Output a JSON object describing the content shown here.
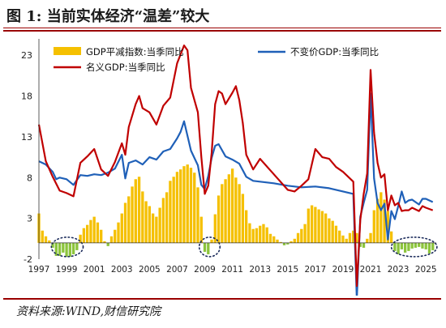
{
  "title": "图 1:  当前实体经济“温差”较大",
  "source": "资料来源:WIND,财信研究院",
  "colors": {
    "rule": "#9a0000",
    "bar_positive": "#f5c000",
    "bar_negative": "#8cc43c",
    "line_real": "#1f60b8",
    "line_nominal": "#c00000"
  },
  "chart_data": {
    "type": "bar+line",
    "ylim": [
      -2,
      25
    ],
    "yticks": [
      -2,
      3,
      8,
      13,
      18,
      23
    ],
    "xlim": [
      1997,
      2025.75
    ],
    "xticks": [
      "1997",
      "1999",
      "2001",
      "2003",
      "2005",
      "2007",
      "2009",
      "2011",
      "2013",
      "2015",
      "2017",
      "2019",
      "2021",
      "2023",
      "2025"
    ],
    "legend": [
      {
        "name": "GDP平减指数:当季同比",
        "kind": "bar",
        "color": "#f5c000"
      },
      {
        "name": "不变价GDP:当季同比",
        "kind": "line",
        "color": "#1f60b8"
      },
      {
        "name": "名义GDP:当季同比",
        "kind": "line",
        "color": "#c00000"
      }
    ],
    "series": [
      {
        "name": "GDP平减指数:当季同比",
        "type": "bar",
        "x": [
          1997.0,
          1997.25,
          1997.5,
          1997.75,
          1998.0,
          1998.25,
          1998.5,
          1998.75,
          1999.0,
          1999.25,
          1999.5,
          1999.75,
          2000.0,
          2000.25,
          2000.5,
          2000.75,
          2001.0,
          2001.25,
          2001.5,
          2001.75,
          2002.0,
          2002.25,
          2002.5,
          2002.75,
          2003.0,
          2003.25,
          2003.5,
          2003.75,
          2004.0,
          2004.25,
          2004.5,
          2004.75,
          2005.0,
          2005.25,
          2005.5,
          2005.75,
          2006.0,
          2006.25,
          2006.5,
          2006.75,
          2007.0,
          2007.25,
          2007.5,
          2007.75,
          2008.0,
          2008.25,
          2008.5,
          2008.75,
          2009.0,
          2009.25,
          2009.5,
          2009.75,
          2010.0,
          2010.25,
          2010.5,
          2010.75,
          2011.0,
          2011.25,
          2011.5,
          2011.75,
          2012.0,
          2012.25,
          2012.5,
          2012.75,
          2013.0,
          2013.25,
          2013.5,
          2013.75,
          2014.0,
          2014.25,
          2014.5,
          2014.75,
          2015.0,
          2015.25,
          2015.5,
          2015.75,
          2016.0,
          2016.25,
          2016.5,
          2016.75,
          2017.0,
          2017.25,
          2017.5,
          2017.75,
          2018.0,
          2018.25,
          2018.5,
          2018.75,
          2019.0,
          2019.25,
          2019.5,
          2019.75,
          2020.0,
          2020.25,
          2020.5,
          2020.75,
          2021.0,
          2021.25,
          2021.5,
          2021.75,
          2022.0,
          2022.25,
          2022.5,
          2022.75,
          2023.0,
          2023.25,
          2023.5,
          2023.75,
          2024.0,
          2024.25,
          2024.5,
          2024.75,
          2025.0,
          2025.25,
          2025.5
        ],
        "values": [
          3.6,
          1.5,
          0.8,
          0.3,
          -0.6,
          -1.6,
          -1.6,
          -1.2,
          -1.7,
          -1.7,
          -1.4,
          -0.9,
          1.0,
          1.8,
          2.2,
          2.8,
          3.2,
          2.5,
          1.6,
          0.2,
          -0.4,
          0.8,
          1.6,
          2.5,
          3.6,
          4.9,
          5.7,
          6.9,
          7.8,
          8.1,
          6.3,
          5.1,
          4.5,
          3.6,
          3.2,
          4.3,
          5.5,
          6.2,
          7.6,
          8.1,
          8.7,
          9.0,
          9.4,
          9.6,
          9.2,
          8.6,
          6.8,
          3.2,
          -1.1,
          -1.4,
          0.4,
          3.5,
          5.8,
          7.2,
          7.8,
          8.4,
          9.1,
          8.0,
          7.2,
          6.0,
          4.0,
          2.4,
          1.7,
          1.8,
          2.1,
          2.3,
          1.9,
          1.1,
          0.8,
          0.4,
          0.1,
          -0.3,
          -0.2,
          0.2,
          0.5,
          1.2,
          1.7,
          2.3,
          4.2,
          4.6,
          4.4,
          4.1,
          3.9,
          3.6,
          3.0,
          2.7,
          2.1,
          1.5,
          0.9,
          0.5,
          1.2,
          1.5,
          1.2,
          -0.5,
          -0.6,
          0.5,
          1.2,
          4.0,
          5.4,
          6.2,
          5.3,
          3.9,
          1.4,
          -1.0,
          -1.4,
          -0.8,
          -1.2,
          -1.0,
          -0.7,
          -0.6,
          -0.5,
          -0.7,
          -0.8,
          -1.3,
          -0.9
        ]
      },
      {
        "name": "不变价GDP:当季同比",
        "type": "line",
        "x": [
          1997.0,
          1997.5,
          1998.0,
          1998.25,
          1998.5,
          1999.0,
          1999.5,
          2000.0,
          2000.5,
          2001.0,
          2001.5,
          2002.0,
          2002.5,
          2003.0,
          2003.25,
          2003.5,
          2004.0,
          2004.5,
          2005.0,
          2005.5,
          2006.0,
          2006.5,
          2007.0,
          2007.25,
          2007.5,
          2008.0,
          2008.5,
          2008.75,
          2009.0,
          2009.25,
          2009.5,
          2009.75,
          2010.0,
          2010.5,
          2011.0,
          2011.5,
          2012.0,
          2012.5,
          2013.0,
          2014.0,
          2015.0,
          2016.0,
          2017.0,
          2018.0,
          2019.0,
          2019.75,
          2020.0,
          2020.25,
          2020.5,
          2020.75,
          2021.0,
          2021.25,
          2021.5,
          2021.75,
          2022.0,
          2022.25,
          2022.5,
          2022.75,
          2023.0,
          2023.25,
          2023.5,
          2023.75,
          2024.0,
          2024.5,
          2024.75,
          2025.0,
          2025.5
        ],
        "values": [
          10.0,
          9.6,
          8.7,
          7.8,
          8.0,
          7.8,
          7.1,
          8.3,
          8.2,
          8.4,
          8.3,
          8.6,
          9.1,
          10.8,
          7.9,
          9.8,
          10.1,
          9.6,
          10.5,
          10.2,
          11.2,
          11.5,
          12.8,
          13.6,
          14.9,
          11.3,
          9.5,
          7.1,
          6.6,
          8.2,
          10.4,
          11.9,
          12.1,
          10.6,
          10.2,
          9.7,
          8.1,
          7.6,
          7.5,
          7.3,
          7.0,
          6.8,
          6.9,
          6.7,
          6.3,
          6.0,
          -6.9,
          3.2,
          4.9,
          6.5,
          18.3,
          7.9,
          4.9,
          4.0,
          4.8,
          0.4,
          3.9,
          2.9,
          4.5,
          6.3,
          4.9,
          5.2,
          5.3,
          4.7,
          5.4,
          5.4,
          5.0
        ]
      },
      {
        "name": "名义GDP:当季同比",
        "type": "line",
        "x": [
          1997.0,
          1997.5,
          1998.0,
          1998.5,
          1999.0,
          1999.5,
          2000.0,
          2000.5,
          2001.0,
          2001.5,
          2002.0,
          2002.5,
          2003.0,
          2003.25,
          2003.5,
          2004.0,
          2004.25,
          2004.5,
          2005.0,
          2005.5,
          2006.0,
          2006.5,
          2007.0,
          2007.5,
          2007.75,
          2008.0,
          2008.5,
          2008.75,
          2009.0,
          2009.25,
          2009.5,
          2009.75,
          2010.0,
          2010.25,
          2010.5,
          2011.0,
          2011.25,
          2011.5,
          2011.75,
          2012.0,
          2012.5,
          2013.0,
          2014.0,
          2015.0,
          2015.5,
          2016.0,
          2016.5,
          2017.0,
          2017.5,
          2018.0,
          2018.5,
          2019.0,
          2019.5,
          2019.75,
          2020.0,
          2020.25,
          2020.5,
          2020.75,
          2021.0,
          2021.25,
          2021.5,
          2021.75,
          2022.0,
          2022.25,
          2022.5,
          2022.75,
          2023.0,
          2023.25,
          2023.5,
          2023.75,
          2024.0,
          2024.5,
          2024.75,
          2025.0,
          2025.5
        ],
        "values": [
          14.5,
          10.0,
          8.1,
          6.4,
          6.1,
          5.7,
          9.8,
          10.6,
          11.5,
          9.0,
          8.2,
          9.9,
          12.2,
          10.8,
          14.2,
          17.0,
          18.0,
          16.5,
          16.0,
          14.5,
          16.8,
          17.8,
          22.0,
          24.2,
          23.6,
          19.0,
          16.0,
          10.5,
          6.0,
          7.0,
          11.0,
          17.0,
          18.6,
          18.3,
          17.0,
          18.4,
          19.2,
          17.5,
          14.7,
          10.8,
          9.0,
          10.3,
          8.4,
          6.5,
          6.3,
          7.0,
          7.8,
          11.5,
          10.5,
          10.3,
          9.3,
          8.7,
          7.9,
          7.5,
          -5.3,
          2.8,
          6.0,
          8.5,
          21.2,
          13.5,
          9.8,
          8.0,
          8.4,
          4.0,
          5.8,
          4.6,
          4.9,
          3.9,
          4.0,
          4.0,
          4.3,
          3.9,
          4.5,
          4.3,
          4.0
        ]
      }
    ],
    "annotations": [
      {
        "kind": "dotted-ellipse",
        "x_range": [
          1997.9,
          2000.2
        ]
      },
      {
        "kind": "dotted-ellipse",
        "x_range": [
          2008.6,
          2010.1
        ]
      },
      {
        "kind": "dotted-ellipse",
        "x_range": [
          2022.5,
          2025.8
        ]
      }
    ]
  }
}
